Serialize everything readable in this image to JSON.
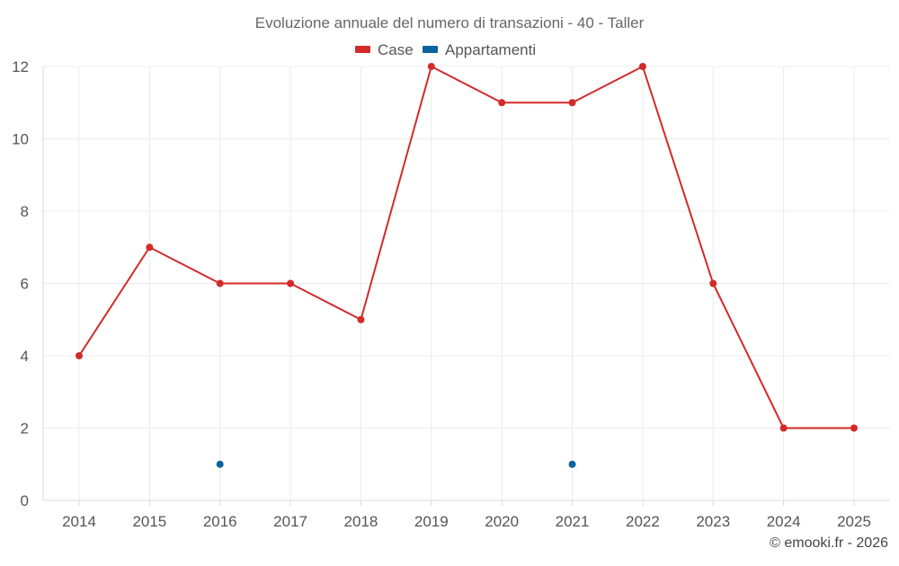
{
  "chart_data": {
    "type": "line",
    "title": "Evoluzione annuale del numero di transazioni - 40 - Taller",
    "categories": [
      "2014",
      "2015",
      "2016",
      "2017",
      "2018",
      "2019",
      "2020",
      "2021",
      "2022",
      "2023",
      "2024",
      "2025"
    ],
    "series": [
      {
        "name": "Case",
        "color": "#d32a2a",
        "values": [
          4,
          7,
          6,
          6,
          5,
          12,
          11,
          11,
          12,
          6,
          2,
          2
        ]
      },
      {
        "name": "Appartamenti",
        "color": "#0d63a0",
        "values": [
          null,
          null,
          1,
          null,
          null,
          null,
          null,
          1,
          null,
          null,
          null,
          null
        ]
      }
    ],
    "y_ticks": [
      "0",
      "2",
      "4",
      "6",
      "8",
      "10",
      "12"
    ],
    "ylim": [
      0,
      12
    ],
    "xlabel": "",
    "ylabel": "",
    "grid": true,
    "legend_position": "top-center"
  },
  "credit": "© emooki.fr - 2026"
}
